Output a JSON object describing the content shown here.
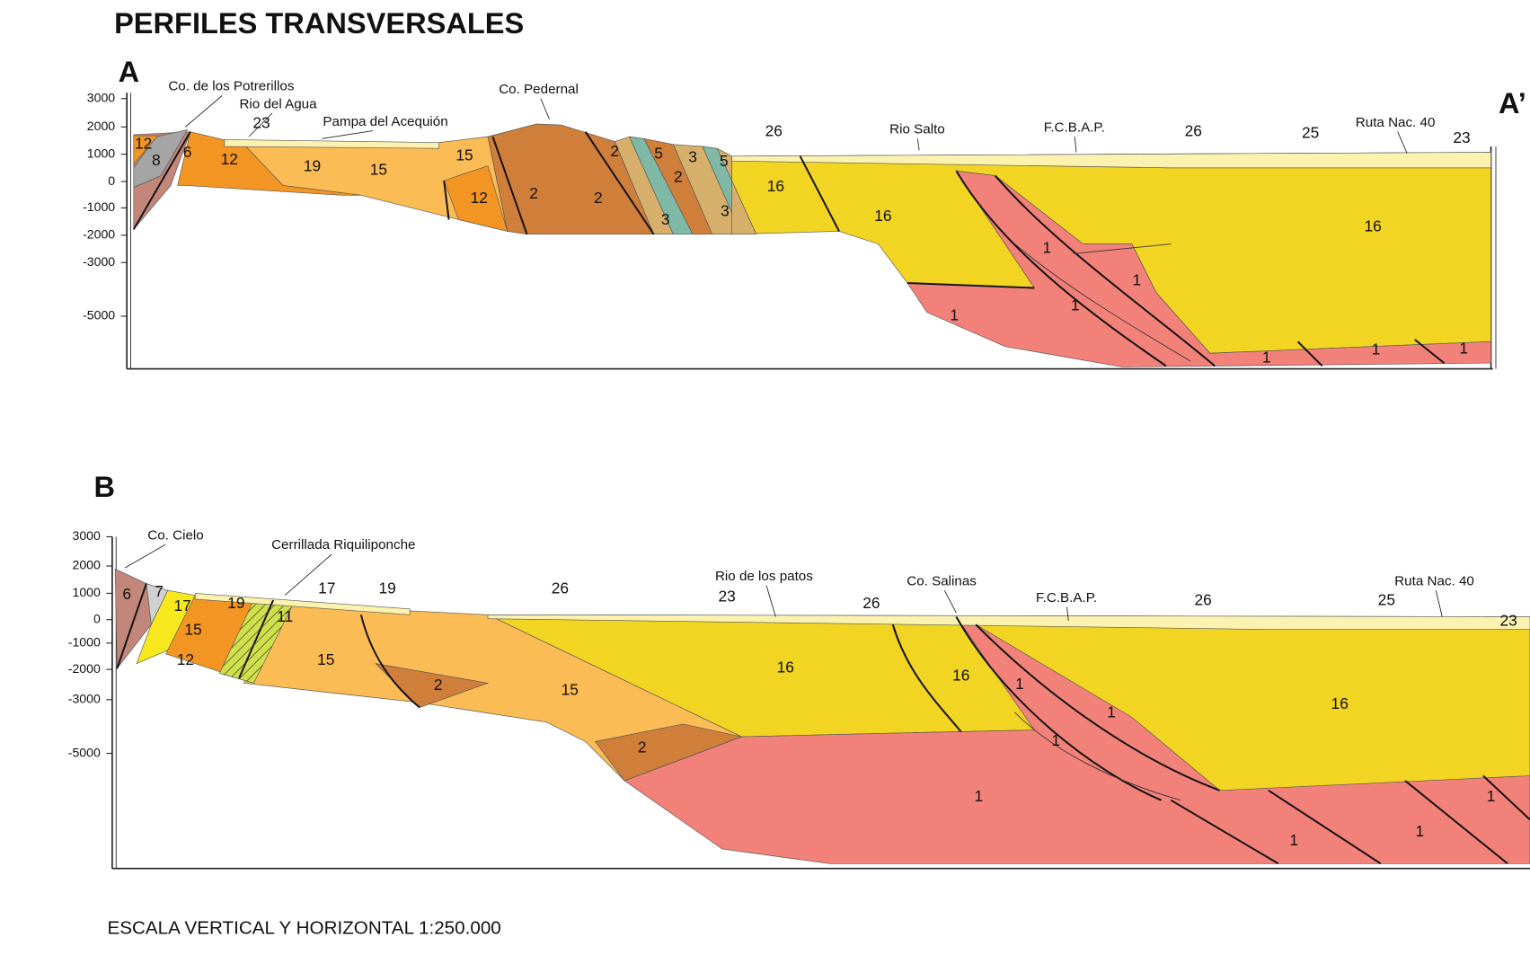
{
  "title": "PERFILES TRANSVERSALES",
  "scale": "ESCALA VERTICAL Y HORIZONTAL 1:250.000",
  "profiles": [
    {
      "label": "A",
      "end_label": "A’",
      "elevation_ticks": [
        "3000",
        "2000",
        "1000",
        "0",
        "-1000",
        "-2000",
        "-3000",
        "-5000"
      ],
      "places": [
        "Co. de los Potrerillos",
        "Rio del Agua",
        "Pampa del Acequión",
        "Co. Pedernal",
        "Rio Salto",
        "F.C.B.A.P.",
        "Ruta Nac. 40"
      ],
      "units": [
        "12",
        "8",
        "6",
        "23",
        "12",
        "19",
        "15",
        "15",
        "12",
        "2",
        "2",
        "2",
        "5",
        "3",
        "5",
        "2",
        "3",
        "3",
        "16",
        "26",
        "16",
        "26",
        "25",
        "23",
        "16",
        "1",
        "1",
        "1",
        "1",
        "1",
        "1",
        "1"
      ]
    },
    {
      "label": "B",
      "elevation_ticks": [
        "3000",
        "2000",
        "1000",
        "0",
        "-1000",
        "-2000",
        "-3000",
        "-5000"
      ],
      "places": [
        "Co. Cielo",
        "Cerrillada Riquiliponche",
        "Rio de los patos",
        "Co. Salinas",
        "F.C.B.A.P.",
        "Ruta Nac. 40"
      ],
      "units": [
        "6",
        "7",
        "17",
        "19",
        "15",
        "12",
        "11",
        "17",
        "19",
        "15",
        "2",
        "15",
        "26",
        "23",
        "26",
        "16",
        "16",
        "1",
        "1",
        "1",
        "2",
        "1",
        "1",
        "1",
        "1",
        "16",
        "25",
        "26",
        "23"
      ]
    }
  ]
}
